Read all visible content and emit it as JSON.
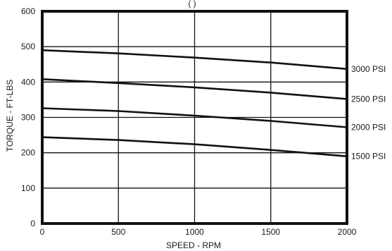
{
  "chart_data": {
    "type": "line",
    "title": "                                 (                    )",
    "xlabel": "SPEED - RPM",
    "ylabel": "TORQUE - FT-LBS",
    "xlim": [
      0,
      2000
    ],
    "ylim": [
      0,
      600
    ],
    "x_ticks": [
      0,
      500,
      1000,
      1500,
      2000
    ],
    "y_ticks": [
      0,
      100,
      200,
      300,
      400,
      500,
      600
    ],
    "grid": true,
    "colors": {
      "line": "#111111",
      "grid": "#111111",
      "background": "#ffffff"
    },
    "series": [
      {
        "name": "3000 PSI",
        "x": [
          0,
          500,
          1000,
          1500,
          2000
        ],
        "y": [
          490,
          481,
          469,
          455,
          437
        ]
      },
      {
        "name": "2500 PSI",
        "x": [
          0,
          500,
          1000,
          1500,
          2000
        ],
        "y": [
          408,
          397,
          385,
          370,
          352
        ]
      },
      {
        "name": "2000 PSI",
        "x": [
          0,
          500,
          1000,
          1500,
          2000
        ],
        "y": [
          326,
          318,
          305,
          290,
          272
        ]
      },
      {
        "name": "1500 PSI",
        "x": [
          0,
          500,
          1000,
          1500,
          2000
        ],
        "y": [
          244,
          236,
          224,
          208,
          190
        ]
      }
    ]
  }
}
